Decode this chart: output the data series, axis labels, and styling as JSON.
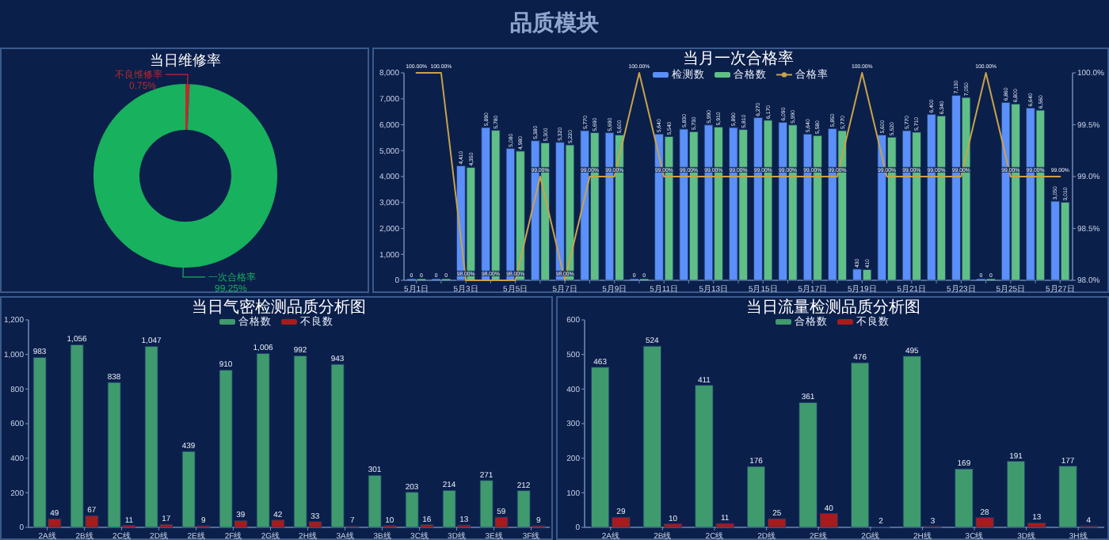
{
  "chart_data": [
    {
      "type": "other",
      "title": "品质模块"
    },
    {
      "type": "donut",
      "title": "当日维修率",
      "categories": [
        "不良维修率",
        "一次合格率"
      ],
      "values": [
        0.75,
        99.25
      ],
      "value_labels": [
        "0.75%",
        "99.25%"
      ],
      "colors": [
        "#c0282d",
        "#18b15d"
      ]
    },
    {
      "type": "bar",
      "title": "当月一次合格率",
      "categories": [
        "5月1日",
        null,
        "5月3日",
        null,
        "5月5日",
        null,
        "5月7日",
        null,
        "5月9日",
        null,
        "5月11日",
        null,
        "5月13日",
        null,
        "5月15日",
        null,
        "5月17日",
        null,
        "5月19日",
        null,
        "5月21日",
        null,
        "5月23日",
        null,
        "5月25日",
        null,
        "5月27日"
      ],
      "series": [
        {
          "name": "检测数",
          "color": "#5b8ff9",
          "values": [
            0,
            0,
            4410,
            5890,
            5080,
            5380,
            5320,
            5770,
            5690,
            0,
            5640,
            5830,
            5990,
            5890,
            6270,
            6090,
            5640,
            5850,
            430,
            5600,
            5770,
            6400,
            7130,
            0,
            6860,
            6640,
            3050
          ],
          "value_labels": [
            "0",
            "0",
            "4,410",
            "5,890",
            "5,080",
            "5,380",
            "5,320",
            "5,770",
            "5,690",
            "0",
            "5,640",
            "5,830",
            "5,990",
            "5,890",
            "6,270",
            "6,090",
            "5,640",
            "5,850",
            "430",
            "5,600",
            "5,770",
            "6,400",
            "7,130",
            "0",
            "6,860",
            "6,640",
            "3,050"
          ]
        },
        {
          "name": "合格数",
          "color": "#5fbf86",
          "values": [
            0,
            0,
            4350,
            5780,
            4980,
            5300,
            5220,
            5690,
            5600,
            0,
            5540,
            5730,
            5910,
            5810,
            6170,
            5990,
            5580,
            5770,
            410,
            5520,
            5710,
            6340,
            7050,
            0,
            6800,
            6560,
            3010
          ],
          "value_labels": [
            "0",
            "0",
            "4,350",
            "5,780",
            "4,980",
            "5,300",
            "5,220",
            "5,690",
            "5,600",
            "0",
            "5,540",
            "5,730",
            "5,910",
            "5,810",
            "6,170",
            "5,990",
            "5,580",
            "5,770",
            "410",
            "5,520",
            "5,710",
            "6,340",
            "7,050",
            "0",
            "6,800",
            "6,560",
            "3,010"
          ]
        },
        {
          "name": "合格率",
          "type": "line",
          "axis": "y2",
          "color": "#c9a24a",
          "values": [
            100,
            100,
            98,
            98,
            98,
            99,
            98,
            99,
            99,
            100,
            99,
            99,
            99,
            99,
            99,
            99,
            99,
            99,
            100,
            99,
            99,
            99,
            99,
            100,
            99,
            99,
            99
          ],
          "value_labels": [
            "100.00%",
            "100.00%",
            "98.00%",
            "98.00%",
            "98.00%",
            "99.00%",
            "98.00%",
            "99.00%",
            "99.00%",
            "100.00%",
            "99.00%",
            "99.00%",
            "99.00%",
            "99.00%",
            "99.00%",
            "99.00%",
            "99.00%",
            "99.00%",
            "100.00%",
            "99.00%",
            "99.00%",
            "99.00%",
            "99.00%",
            "100.00%",
            "99.00%",
            "99.00%",
            "99.00%"
          ]
        }
      ],
      "ylim": [
        0,
        8000
      ],
      "yticks": [
        0,
        {
          "value": 1000,
          "label": "1,000"
        },
        {
          "value": 2000,
          "label": "2,000"
        },
        {
          "value": 3000,
          "label": "3,000"
        },
        {
          "value": 4000,
          "label": "4,000"
        },
        {
          "value": 5000,
          "label": "5,000"
        },
        {
          "value": 6000,
          "label": "6,000"
        },
        {
          "value": 7000,
          "label": "7,000"
        },
        {
          "value": 8000,
          "label": "8,000"
        }
      ],
      "y2lim": [
        98,
        100
      ],
      "y2ticks": [
        {
          "value": 98,
          "label": "98.0%"
        },
        {
          "value": 98.5,
          "label": "98.5%"
        },
        {
          "value": 99,
          "label": "99.0%"
        },
        {
          "value": 99.5,
          "label": "99.5%"
        },
        {
          "value": 100,
          "label": "100.0%"
        }
      ],
      "legend": "top"
    },
    {
      "type": "bar",
      "title": "当日气密检测品质分析图",
      "categories": [
        "2A线",
        "2B线",
        "2C线",
        "2D线",
        "2E线",
        "2F线",
        "2G线",
        "2H线",
        "3A线",
        "3B线",
        "3C线",
        "3D线",
        "3E线",
        "3F线"
      ],
      "series": [
        {
          "name": "合格数",
          "color": "#3f9a6e",
          "values": [
            983,
            1056,
            838,
            1047,
            439,
            910,
            1006,
            992,
            943,
            301,
            203,
            214,
            271,
            212
          ],
          "value_labels": [
            "983",
            "1,056",
            "838",
            "1,047",
            "439",
            "910",
            "1,006",
            "992",
            "943",
            "301",
            "203",
            "214",
            "271",
            "212"
          ]
        },
        {
          "name": "不良数",
          "color": "#a61c1c",
          "values": [
            49,
            67,
            11,
            17,
            9,
            39,
            42,
            33,
            7,
            10,
            16,
            13,
            59,
            9
          ],
          "value_labels": [
            "49",
            "67",
            "11",
            "17",
            "9",
            "39",
            "42",
            "33",
            "7",
            "10",
            "16",
            "13",
            "59",
            "9"
          ]
        }
      ],
      "ylim": [
        0,
        1200
      ],
      "yticks": [
        0,
        200,
        400,
        600,
        800,
        {
          "value": 1000,
          "label": "1,000"
        },
        {
          "value": 1200,
          "label": "1,200"
        }
      ],
      "legend": "top"
    },
    {
      "type": "bar",
      "title": "当日流量检测品质分析图",
      "categories": [
        "2A线",
        "2B线",
        "2C线",
        "2D线",
        "2E线",
        "2G线",
        "2H线",
        "3C线",
        "3D线",
        "3H线"
      ],
      "series": [
        {
          "name": "合格数",
          "color": "#3f9a6e",
          "values": [
            463,
            524,
            411,
            176,
            361,
            476,
            495,
            169,
            191,
            177
          ],
          "value_labels": [
            "463",
            "524",
            "411",
            "176",
            "361",
            "476",
            "495",
            "169",
            "191",
            "177"
          ]
        },
        {
          "name": "不良数",
          "color": "#a61c1c",
          "values": [
            29,
            10,
            11,
            25,
            40,
            2,
            3,
            28,
            13,
            4
          ],
          "value_labels": [
            "29",
            "10",
            "11",
            "25",
            "40",
            "2",
            "3",
            "28",
            "13",
            "4"
          ]
        }
      ],
      "ylim": [
        0,
        600
      ],
      "yticks": [
        0,
        100,
        200,
        300,
        400,
        500,
        600
      ],
      "legend": "top"
    }
  ]
}
